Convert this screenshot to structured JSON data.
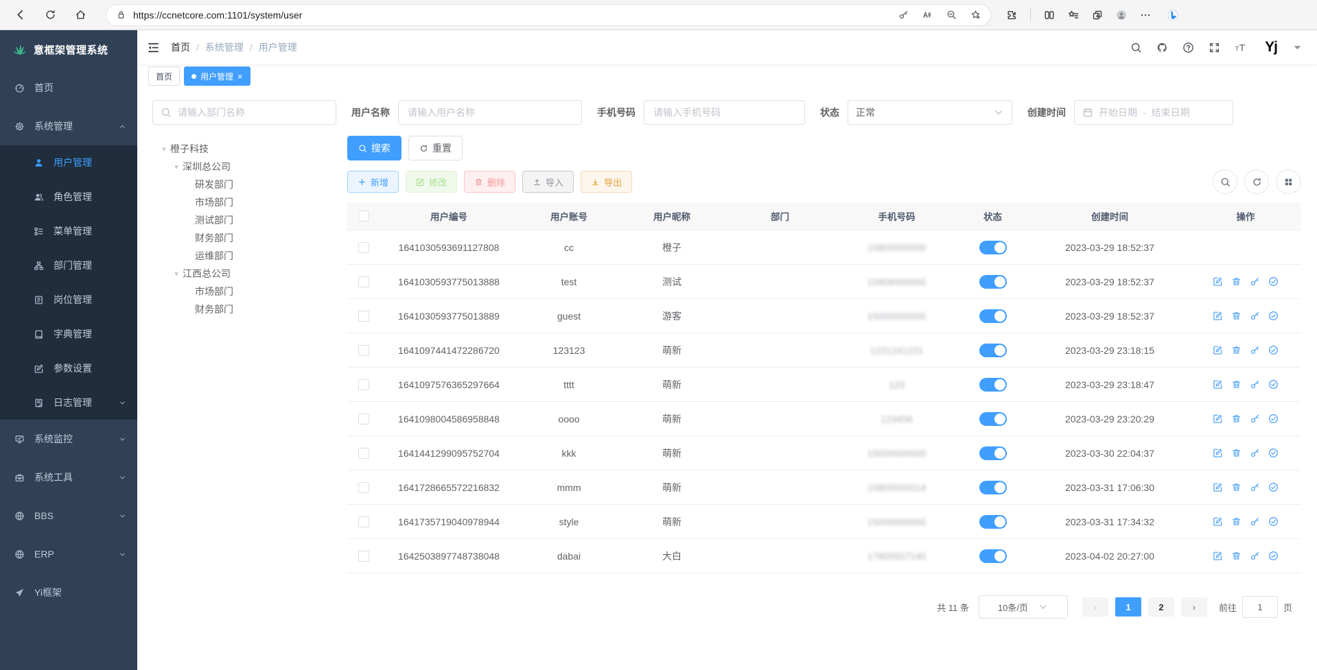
{
  "browser": {
    "url": "https://ccnetcore.com:1101/system/user"
  },
  "sidebar": {
    "title": "意框架管理系统",
    "items": [
      {
        "label": "首页",
        "icon": "dashboard-icon",
        "level": 0
      },
      {
        "label": "系统管理",
        "icon": "gear-icon",
        "level": 0,
        "chevron": "up"
      },
      {
        "label": "用户管理",
        "icon": "user-icon",
        "level": 1,
        "active": true
      },
      {
        "label": "角色管理",
        "icon": "users-icon",
        "level": 1
      },
      {
        "label": "菜单管理",
        "icon": "menu-tree-icon",
        "level": 1
      },
      {
        "label": "部门管理",
        "icon": "org-icon",
        "level": 1
      },
      {
        "label": "岗位管理",
        "icon": "badge-icon",
        "level": 1
      },
      {
        "label": "字典管理",
        "icon": "dict-icon",
        "level": 1
      },
      {
        "label": "参数设置",
        "icon": "config-icon",
        "level": 1
      },
      {
        "label": "日志管理",
        "icon": "log-icon",
        "level": 1,
        "chevron": "down"
      },
      {
        "label": "系统监控",
        "icon": "monitor-icon",
        "level": 0,
        "chevron": "down"
      },
      {
        "label": "系统工具",
        "icon": "tool-icon",
        "level": 0,
        "chevron": "down"
      },
      {
        "label": "BBS",
        "icon": "globe-icon",
        "level": 0,
        "chevron": "down"
      },
      {
        "label": "ERP",
        "icon": "globe-icon",
        "level": 0,
        "chevron": "down"
      },
      {
        "label": "Yi框架",
        "icon": "send-icon",
        "level": 0
      }
    ]
  },
  "navbar": {
    "breadcrumb": [
      "首页",
      "系统管理",
      "用户管理"
    ],
    "logo_text": "Yj"
  },
  "tabs": {
    "home": "首页",
    "active": "用户管理"
  },
  "filters": {
    "dept_placeholder": "请输入部门名称",
    "username_label": "用户名称",
    "username_placeholder": "请输入用户名称",
    "phone_label": "手机号码",
    "phone_placeholder": "请输入手机号码",
    "status_label": "状态",
    "status_value": "正常",
    "created_label": "创建时间",
    "date_start": "开始日期",
    "date_dash": "-",
    "date_end": "结束日期"
  },
  "tree": {
    "nodes": [
      {
        "label": "橙子科技",
        "level": 0,
        "expandable": true
      },
      {
        "label": "深圳总公司",
        "level": 1,
        "expandable": true
      },
      {
        "label": "研发部门",
        "level": 2
      },
      {
        "label": "市场部门",
        "level": 2
      },
      {
        "label": "测试部门",
        "level": 2
      },
      {
        "label": "财务部门",
        "level": 2
      },
      {
        "label": "运维部门",
        "level": 2
      },
      {
        "label": "江西总公司",
        "level": 1,
        "expandable": true
      },
      {
        "label": "市场部门",
        "level": 2
      },
      {
        "label": "财务部门",
        "level": 2
      }
    ]
  },
  "buttons": {
    "search": "搜索",
    "reset": "重置",
    "add": "新增",
    "edit": "修改",
    "delete": "删除",
    "import": "导入",
    "export": "导出"
  },
  "table": {
    "columns": [
      "用户编号",
      "用户账号",
      "用户昵称",
      "部门",
      "手机号码",
      "状态",
      "创建时间",
      "操作"
    ],
    "rows": [
      {
        "id": "1641030593691127808",
        "account": "cc",
        "nickname": "橙子",
        "dept": "",
        "phone": "15800000000",
        "phone_masked": true,
        "status": true,
        "created": "2023-03-29 18:52:37",
        "actions": false
      },
      {
        "id": "1641030593775013888",
        "account": "test",
        "nickname": "测试",
        "dept": "",
        "phone": "15906000000",
        "phone_masked": true,
        "status": true,
        "created": "2023-03-29 18:52:37",
        "actions": true
      },
      {
        "id": "1641030593775013889",
        "account": "guest",
        "nickname": "游客",
        "dept": "",
        "phone": "15000000000",
        "phone_masked": true,
        "status": true,
        "created": "2023-03-29 18:52:37",
        "actions": true
      },
      {
        "id": "1641097441472286720",
        "account": "123123",
        "nickname": "萌新",
        "dept": "",
        "phone": "1231241231",
        "phone_masked": true,
        "status": true,
        "created": "2023-03-29 23:18:15",
        "actions": true
      },
      {
        "id": "1641097576365297664",
        "account": "tttt",
        "nickname": "萌新",
        "dept": "",
        "phone": "123",
        "phone_masked": true,
        "status": true,
        "created": "2023-03-29 23:18:47",
        "actions": true
      },
      {
        "id": "1641098004586958848",
        "account": "oooo",
        "nickname": "萌新",
        "dept": "",
        "phone": "123456",
        "phone_masked": true,
        "status": true,
        "created": "2023-03-29 23:20:29",
        "actions": true
      },
      {
        "id": "1641441299095752704",
        "account": "kkk",
        "nickname": "萌新",
        "dept": "",
        "phone": "15000000000",
        "phone_masked": true,
        "status": true,
        "created": "2023-03-30 22:04:37",
        "actions": true
      },
      {
        "id": "1641728665572216832",
        "account": "mmm",
        "nickname": "萌新",
        "dept": "",
        "phone": "15800000014",
        "phone_masked": true,
        "status": true,
        "created": "2023-03-31 17:06:30",
        "actions": true
      },
      {
        "id": "1641735719040978944",
        "account": "style",
        "nickname": "萌新",
        "dept": "",
        "phone": "15000000000",
        "phone_masked": true,
        "status": true,
        "created": "2023-03-31 17:34:32",
        "actions": true
      },
      {
        "id": "1642503897748738048",
        "account": "dabai",
        "nickname": "大白",
        "dept": "",
        "phone": "17805557140",
        "phone_masked": true,
        "status": true,
        "created": "2023-04-02 20:27:00",
        "actions": true
      }
    ]
  },
  "pagination": {
    "total": "共 11 条",
    "page_size": "10条/页",
    "pages": [
      "1",
      "2"
    ],
    "current": "1",
    "goto_label": "前往",
    "goto_value": "1",
    "page_unit": "页"
  },
  "colors": {
    "primary": "#409eff",
    "sidebar_bg": "#304156",
    "sidebar_sub_bg": "#1f2d3d",
    "logo_green": "#36b287"
  }
}
